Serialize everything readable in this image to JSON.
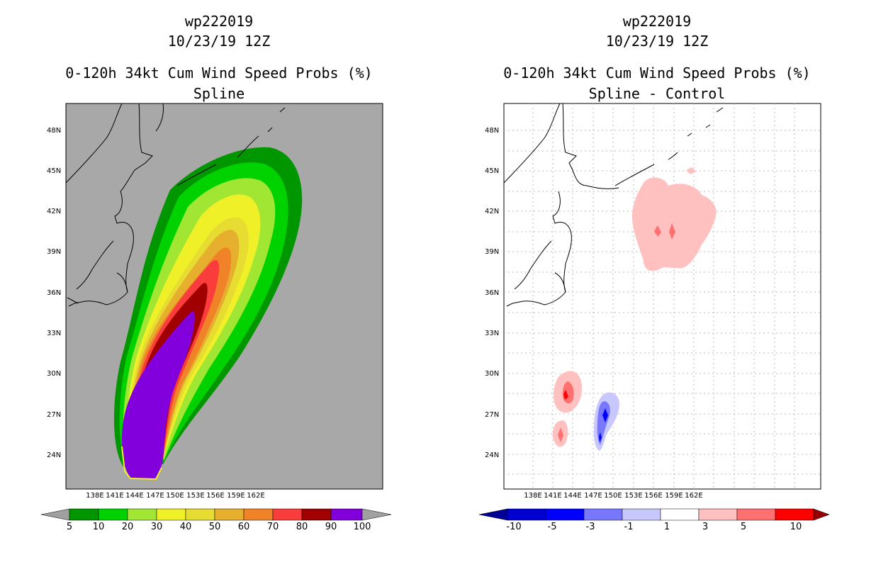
{
  "left_panel": {
    "title_line1": "wp222019",
    "title_line2": "10/23/19 12Z",
    "title_line3": "0-120h 34kt Cum Wind Speed Probs (%)",
    "title_line4": "Spline",
    "lat_ticks": [
      "48N",
      "45N",
      "42N",
      "39N",
      "36N",
      "33N",
      "30N",
      "27N",
      "24N"
    ],
    "lon_ticks": [
      "138E",
      "141E",
      "144E",
      "147E",
      "150E",
      "153E",
      "156E",
      "159E",
      "162E"
    ],
    "colorbar": {
      "labels": [
        "5",
        "10",
        "20",
        "30",
        "40",
        "50",
        "60",
        "70",
        "80",
        "90",
        "100"
      ],
      "colors": [
        "#009600",
        "#00d200",
        "#a0e632",
        "#f0f028",
        "#e6dc32",
        "#e6af2d",
        "#f08228",
        "#fa3c3c",
        "#a00000",
        "#8200dc"
      ],
      "end_color": "#a0a0a0"
    }
  },
  "right_panel": {
    "title_line1": "wp222019",
    "title_line2": "10/23/19 12Z",
    "title_line3": "0-120h 34kt Cum Wind Speed Probs (%)",
    "title_line4": "Spline - Control",
    "lat_ticks": [
      "48N",
      "45N",
      "42N",
      "39N",
      "36N",
      "33N",
      "30N",
      "27N",
      "24N"
    ],
    "lon_ticks": [
      "138E",
      "141E",
      "144E",
      "147E",
      "150E",
      "153E",
      "156E",
      "159E",
      "162E"
    ],
    "colorbar": {
      "labels": [
        "-10",
        "-5",
        "-3",
        "-1",
        "1",
        "3",
        "5",
        "10"
      ],
      "colors": [
        "#0000d2",
        "#0000ff",
        "#7878ff",
        "#c8c8ff",
        "#ffffff",
        "#ffc0c0",
        "#ff7070",
        "#ff0000"
      ],
      "end_left_color": "#000096",
      "end_right_color": "#960000"
    }
  },
  "map_colors": {
    "left_background": "#a8a8a8",
    "right_background": "#ffffff"
  }
}
